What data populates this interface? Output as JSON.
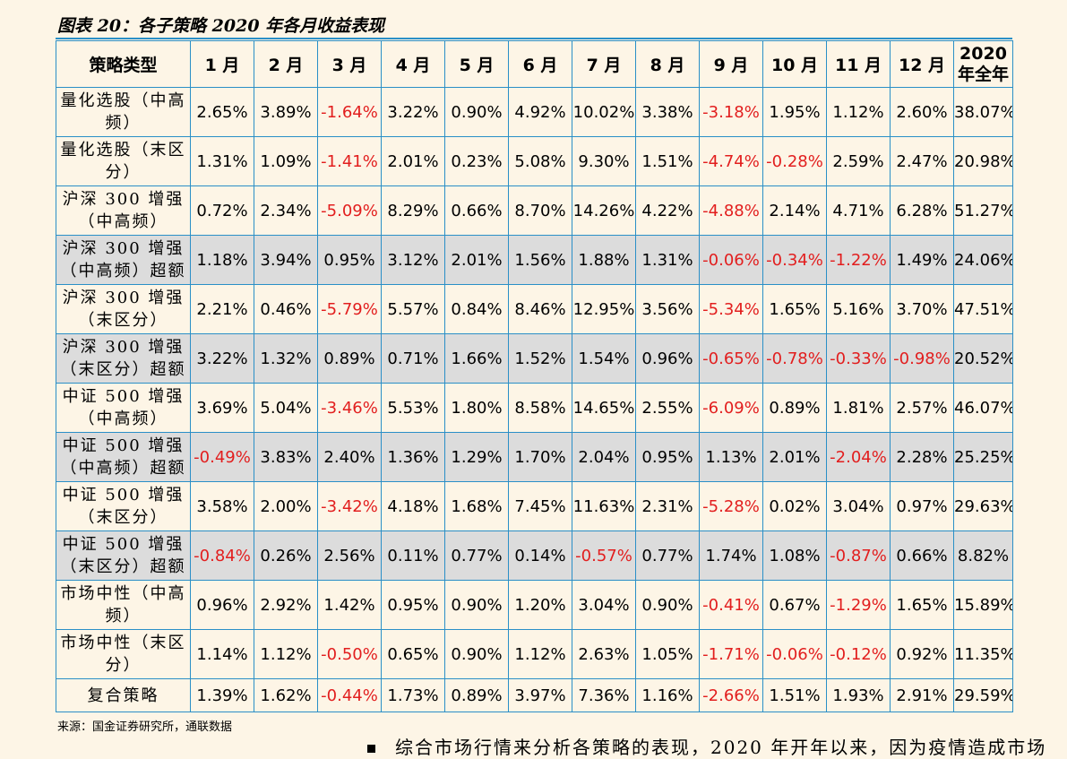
{
  "title": "图表 20：各子策略 2020 年各月收益表现",
  "headers": [
    "策略类型",
    "1 月",
    "2 月",
    "3 月",
    "4 月",
    "5 月",
    "6 月",
    "7 月",
    "8 月",
    "9 月",
    "10 月",
    "11 月",
    "12 月",
    "2020 年全年"
  ],
  "rows": [
    {
      "name": "量化选股（中高频）",
      "shaded": false,
      "values": [
        "2.65%",
        "3.89%",
        "-1.64%",
        "3.22%",
        "0.90%",
        "4.92%",
        "10.02%",
        "3.38%",
        "-3.18%",
        "1.95%",
        "1.12%",
        "2.60%",
        "38.07%"
      ]
    },
    {
      "name": "量化选股（末区分）",
      "shaded": false,
      "values": [
        "1.31%",
        "1.09%",
        "-1.41%",
        "2.01%",
        "0.23%",
        "5.08%",
        "9.30%",
        "1.51%",
        "-4.74%",
        "-0.28%",
        "2.59%",
        "2.47%",
        "20.98%"
      ]
    },
    {
      "name": "沪深 300 增强（中高频）",
      "shaded": false,
      "values": [
        "0.72%",
        "2.34%",
        "-5.09%",
        "8.29%",
        "0.66%",
        "8.70%",
        "14.26%",
        "4.22%",
        "-4.88%",
        "2.14%",
        "4.71%",
        "6.28%",
        "51.27%"
      ]
    },
    {
      "name": "沪深 300 增强（中高频）超额",
      "shaded": true,
      "values": [
        "1.18%",
        "3.94%",
        "0.95%",
        "3.12%",
        "2.01%",
        "1.56%",
        "1.88%",
        "1.31%",
        "-0.06%",
        "-0.34%",
        "-1.22%",
        "1.49%",
        "24.06%"
      ]
    },
    {
      "name": "沪深 300 增强（末区分）",
      "shaded": false,
      "values": [
        "2.21%",
        "0.46%",
        "-5.79%",
        "5.57%",
        "0.84%",
        "8.46%",
        "12.95%",
        "3.56%",
        "-5.34%",
        "1.65%",
        "5.16%",
        "3.70%",
        "47.51%"
      ]
    },
    {
      "name": "沪深 300 增强（末区分）超额",
      "shaded": true,
      "values": [
        "3.22%",
        "1.32%",
        "0.89%",
        "0.71%",
        "1.66%",
        "1.52%",
        "1.54%",
        "0.96%",
        "-0.65%",
        "-0.78%",
        "-0.33%",
        "-0.98%",
        "20.52%"
      ]
    },
    {
      "name": "中证 500 增强（中高频）",
      "shaded": false,
      "values": [
        "3.69%",
        "5.04%",
        "-3.46%",
        "5.53%",
        "1.80%",
        "8.58%",
        "14.65%",
        "2.55%",
        "-6.09%",
        "0.89%",
        "1.81%",
        "2.57%",
        "46.07%"
      ]
    },
    {
      "name": "中证 500 增强（中高频）超额",
      "shaded": true,
      "values": [
        "-0.49%",
        "3.83%",
        "2.40%",
        "1.36%",
        "1.29%",
        "1.70%",
        "2.04%",
        "0.95%",
        "1.13%",
        "2.01%",
        "-2.04%",
        "2.28%",
        "25.25%"
      ]
    },
    {
      "name": "中证 500 增强（末区分）",
      "shaded": false,
      "values": [
        "3.58%",
        "2.00%",
        "-3.42%",
        "4.18%",
        "1.68%",
        "7.45%",
        "11.63%",
        "2.31%",
        "-5.28%",
        "0.02%",
        "3.04%",
        "0.97%",
        "29.63%"
      ]
    },
    {
      "name": "中证 500 增强（末区分）超额",
      "shaded": true,
      "values": [
        "-0.84%",
        "0.26%",
        "2.56%",
        "0.11%",
        "0.77%",
        "0.14%",
        "-0.57%",
        "0.77%",
        "1.74%",
        "1.08%",
        "-0.87%",
        "0.66%",
        "8.82%"
      ]
    },
    {
      "name": "市场中性（中高频）",
      "shaded": false,
      "values": [
        "0.96%",
        "2.92%",
        "1.42%",
        "0.95%",
        "0.90%",
        "1.20%",
        "3.04%",
        "0.90%",
        "-0.41%",
        "0.67%",
        "-1.29%",
        "1.65%",
        "15.89%"
      ]
    },
    {
      "name": "市场中性（末区分）",
      "shaded": false,
      "values": [
        "1.14%",
        "1.12%",
        "-0.50%",
        "0.65%",
        "0.90%",
        "1.12%",
        "2.63%",
        "1.05%",
        "-1.71%",
        "-0.06%",
        "-0.12%",
        "0.92%",
        "11.35%"
      ]
    },
    {
      "name": "复合策略",
      "shaded": false,
      "values": [
        "1.39%",
        "1.62%",
        "-0.44%",
        "1.73%",
        "0.89%",
        "3.97%",
        "7.36%",
        "1.16%",
        "-2.66%",
        "1.51%",
        "1.93%",
        "2.91%",
        "29.59%"
      ]
    }
  ],
  "source": "来源：国金证券研究所，通联数据",
  "bottom_text": "综合市场行情来分析各策略的表现，2020 年开年以来，因为疫情造成市场",
  "colors": {
    "border": "#2a8fc7",
    "negative": "#e21e1e",
    "shade": "#dcdcdc",
    "background": "#fdf5e6"
  }
}
